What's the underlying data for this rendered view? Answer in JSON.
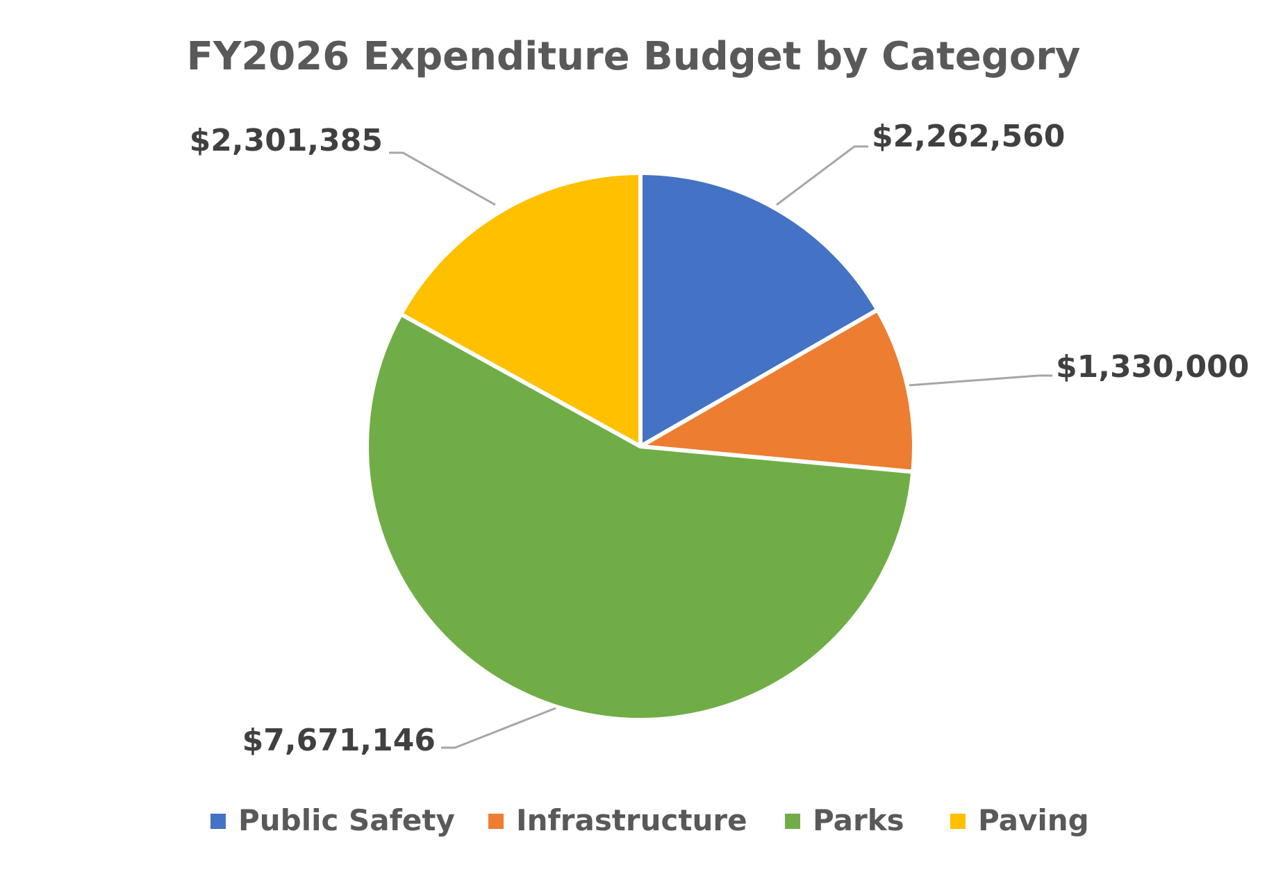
{
  "chart_data": {
    "type": "pie",
    "title": "FY2026 Expenditure Budget by Category",
    "legend_position": "bottom",
    "slices": [
      {
        "name": "Public Safety",
        "value": 2262560,
        "label": "$2,262,560",
        "color": "#4472C4"
      },
      {
        "name": "Infrastructure",
        "value": 1330000,
        "label": "$1,330,000",
        "color": "#ED7D31"
      },
      {
        "name": "Parks",
        "value": 7671146,
        "label": "$7,671,146",
        "color": "#70AD47"
      },
      {
        "name": "Paving",
        "value": 2301385,
        "label": "$2,301,385",
        "color": "#FFC000"
      }
    ]
  }
}
